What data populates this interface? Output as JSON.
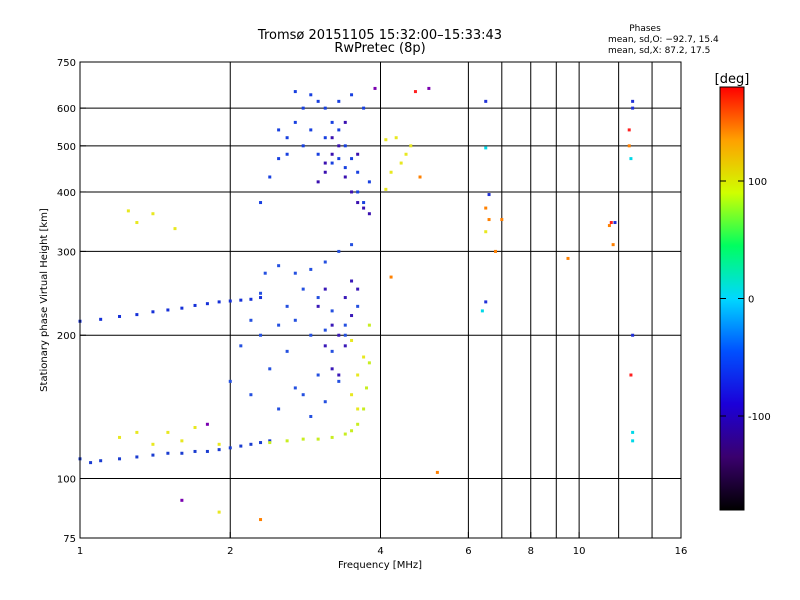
{
  "header": {
    "title_line1": "Tromsø 20151105 15:32:00–15:33:43",
    "title_line2": "RwPretec (8p)",
    "stats_title": "Phases",
    "stats_line1": "mean, sd,O: −92.7, 15.4",
    "stats_line2": "mean, sd,X:  87.2, 17.5"
  },
  "colorbar": {
    "unit_label": "[deg]",
    "ticks": [
      100,
      0,
      -100
    ],
    "range": [
      -180,
      180
    ],
    "palette": [
      "#000000",
      "#3a006e",
      "#1b00d8",
      "#0050ff",
      "#00d8ff",
      "#00ff60",
      "#d0ff00",
      "#ffa000",
      "#ff0000"
    ]
  },
  "chart_data": {
    "type": "scatter",
    "xlabel": "Frequency [MHz]",
    "ylabel": "Stationary phase Virtual Height [km]",
    "xscale": "log",
    "yscale": "log",
    "xlim": [
      1,
      16
    ],
    "ylim": [
      75,
      750
    ],
    "x_ticks": [
      1,
      2,
      4,
      6,
      8,
      10,
      16
    ],
    "y_ticks": [
      75,
      100,
      200,
      300,
      400,
      500,
      600,
      750
    ],
    "x_grid": [
      2,
      4,
      6,
      7,
      8,
      9,
      10,
      12,
      14
    ],
    "y_grid": [
      100,
      200,
      300,
      400,
      500,
      600
    ],
    "grid": true,
    "series": [
      {
        "color": "#1530d8",
        "points": [
          [
            1.0,
            214
          ],
          [
            1.1,
            216
          ],
          [
            1.2,
            219
          ],
          [
            1.3,
            221
          ],
          [
            1.4,
            224
          ],
          [
            1.5,
            226
          ],
          [
            1.6,
            228
          ],
          [
            1.7,
            231
          ],
          [
            1.8,
            233
          ],
          [
            1.9,
            235
          ],
          [
            2.0,
            236
          ],
          [
            2.1,
            237
          ],
          [
            2.2,
            238
          ],
          [
            2.3,
            240
          ]
        ]
      },
      {
        "color": "#1a3cd0",
        "points": [
          [
            1.0,
            110
          ],
          [
            1.05,
            108
          ],
          [
            1.1,
            109
          ],
          [
            1.2,
            110
          ],
          [
            1.3,
            111
          ],
          [
            1.4,
            112
          ],
          [
            1.5,
            113
          ],
          [
            1.6,
            113
          ],
          [
            1.7,
            114
          ],
          [
            1.8,
            114
          ],
          [
            1.9,
            115
          ],
          [
            2.0,
            116
          ],
          [
            2.1,
            117
          ],
          [
            2.2,
            118
          ],
          [
            2.3,
            119
          ],
          [
            2.4,
            120
          ]
        ]
      },
      {
        "color": "#c8ee20",
        "points": [
          [
            2.4,
            119
          ],
          [
            2.6,
            120
          ],
          [
            2.8,
            121
          ],
          [
            3.0,
            121
          ],
          [
            3.2,
            122
          ],
          [
            3.4,
            124
          ],
          [
            3.5,
            126
          ],
          [
            3.6,
            130
          ],
          [
            3.7,
            140
          ],
          [
            3.75,
            155
          ],
          [
            3.8,
            175
          ],
          [
            3.8,
            210
          ]
        ]
      },
      {
        "color": "#2450e0",
        "points": [
          [
            2.0,
            160
          ],
          [
            2.1,
            190
          ],
          [
            2.2,
            215
          ],
          [
            2.3,
            245
          ],
          [
            2.35,
            270
          ],
          [
            2.5,
            280
          ],
          [
            2.7,
            270
          ],
          [
            2.9,
            275
          ],
          [
            3.1,
            285
          ],
          [
            3.3,
            300
          ],
          [
            3.5,
            310
          ],
          [
            2.2,
            150
          ],
          [
            2.4,
            170
          ],
          [
            2.6,
            185
          ],
          [
            2.8,
            150
          ],
          [
            3.0,
            165
          ],
          [
            3.2,
            185
          ],
          [
            3.4,
            200
          ],
          [
            3.6,
            230
          ],
          [
            2.5,
            140
          ],
          [
            2.7,
            155
          ],
          [
            2.9,
            135
          ],
          [
            3.1,
            145
          ],
          [
            3.3,
            160
          ],
          [
            2.6,
            230
          ],
          [
            2.8,
            250
          ],
          [
            3.0,
            240
          ],
          [
            3.2,
            225
          ],
          [
            3.4,
            210
          ],
          [
            2.3,
            200
          ],
          [
            2.5,
            210
          ],
          [
            2.7,
            215
          ],
          [
            2.9,
            200
          ],
          [
            3.1,
            205
          ]
        ]
      },
      {
        "color": "#3a18b8",
        "points": [
          [
            3.0,
            230
          ],
          [
            3.1,
            250
          ],
          [
            3.2,
            210
          ],
          [
            3.3,
            200
          ],
          [
            3.4,
            190
          ],
          [
            3.5,
            220
          ],
          [
            3.2,
            170
          ],
          [
            3.3,
            165
          ],
          [
            3.4,
            240
          ],
          [
            3.5,
            260
          ],
          [
            3.1,
            190
          ],
          [
            3.6,
            250
          ]
        ]
      },
      {
        "color": "#1840e0",
        "points": [
          [
            2.3,
            380
          ],
          [
            2.4,
            430
          ],
          [
            2.5,
            470
          ],
          [
            2.6,
            520
          ],
          [
            2.7,
            560
          ],
          [
            2.8,
            600
          ],
          [
            2.9,
            640
          ],
          [
            3.0,
            620
          ],
          [
            3.1,
            600
          ],
          [
            3.2,
            560
          ],
          [
            3.3,
            540
          ],
          [
            3.4,
            500
          ],
          [
            3.5,
            470
          ],
          [
            3.6,
            440
          ],
          [
            2.6,
            480
          ],
          [
            2.8,
            500
          ],
          [
            3.0,
            480
          ],
          [
            3.2,
            460
          ],
          [
            3.4,
            450
          ],
          [
            3.6,
            400
          ],
          [
            3.7,
            380
          ],
          [
            3.8,
            420
          ],
          [
            2.9,
            540
          ],
          [
            3.3,
            620
          ],
          [
            3.5,
            640
          ],
          [
            3.7,
            600
          ],
          [
            2.5,
            540
          ],
          [
            2.7,
            650
          ],
          [
            3.1,
            520
          ],
          [
            3.3,
            470
          ]
        ]
      },
      {
        "color": "#3a10b0",
        "points": [
          [
            3.0,
            420
          ],
          [
            3.1,
            460
          ],
          [
            3.2,
            480
          ],
          [
            3.3,
            500
          ],
          [
            3.4,
            430
          ],
          [
            3.5,
            400
          ],
          [
            3.6,
            380
          ],
          [
            3.7,
            370
          ],
          [
            3.8,
            360
          ],
          [
            3.2,
            520
          ],
          [
            3.4,
            560
          ],
          [
            3.6,
            480
          ],
          [
            3.1,
            440
          ]
        ]
      },
      {
        "color": "#e8e820",
        "points": [
          [
            1.2,
            122
          ],
          [
            1.3,
            125
          ],
          [
            1.4,
            118
          ],
          [
            1.5,
            125
          ],
          [
            1.6,
            120
          ],
          [
            1.7,
            128
          ],
          [
            1.9,
            118
          ],
          [
            1.25,
            365
          ],
          [
            1.4,
            360
          ],
          [
            1.3,
            345
          ],
          [
            1.55,
            335
          ],
          [
            1.9,
            85
          ],
          [
            3.6,
            165
          ],
          [
            3.7,
            180
          ],
          [
            3.5,
            150
          ],
          [
            3.6,
            140
          ],
          [
            3.5,
            195
          ],
          [
            4.1,
            515
          ],
          [
            4.3,
            520
          ],
          [
            4.5,
            480
          ],
          [
            4.6,
            500
          ],
          [
            4.2,
            440
          ],
          [
            4.4,
            460
          ],
          [
            4.1,
            405
          ],
          [
            6.5,
            330
          ]
        ]
      },
      {
        "color": "#ff8000",
        "points": [
          [
            4.8,
            430
          ],
          [
            6.5,
            370
          ],
          [
            6.6,
            350
          ],
          [
            6.8,
            300
          ],
          [
            7.0,
            350
          ],
          [
            11.5,
            340
          ],
          [
            11.7,
            310
          ],
          [
            12.6,
            500
          ],
          [
            5.2,
            103
          ],
          [
            4.2,
            265
          ],
          [
            2.3,
            82
          ],
          [
            9.5,
            290
          ]
        ]
      },
      {
        "color": "#ff2020",
        "points": [
          [
            12.6,
            540
          ],
          [
            11.6,
            345
          ],
          [
            12.7,
            165
          ],
          [
            4.7,
            650
          ]
        ]
      },
      {
        "color": "#00d8e8",
        "points": [
          [
            6.5,
            495
          ],
          [
            6.4,
            225
          ],
          [
            12.7,
            470
          ],
          [
            12.8,
            125
          ],
          [
            12.8,
            120
          ]
        ]
      },
      {
        "color": "#2030d8",
        "points": [
          [
            6.5,
            620
          ],
          [
            12.8,
            620
          ],
          [
            12.8,
            600
          ],
          [
            6.6,
            395
          ],
          [
            6.5,
            235
          ],
          [
            11.8,
            345
          ],
          [
            12.8,
            200
          ]
        ]
      },
      {
        "color": "#7a00b0",
        "points": [
          [
            5.0,
            660
          ],
          [
            3.9,
            660
          ],
          [
            1.6,
            90
          ],
          [
            1.8,
            130
          ]
        ]
      }
    ]
  }
}
